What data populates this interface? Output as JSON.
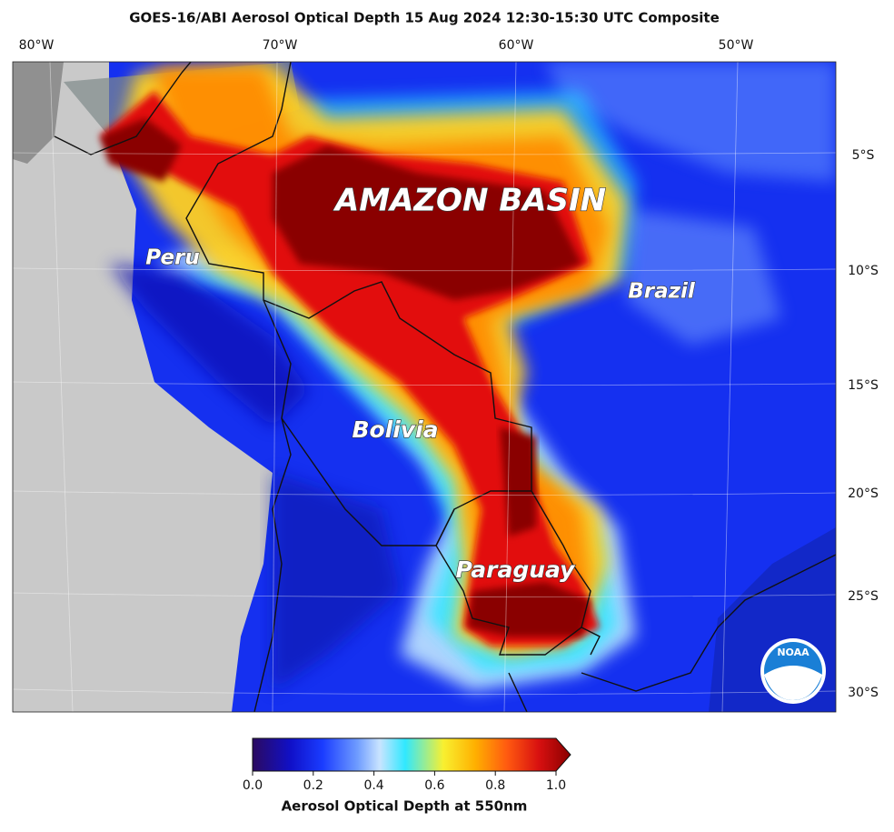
{
  "map": {
    "title": "GOES-16/ABI Aerosol Optical Depth  15 Aug 2024 12:30-15:30 UTC Composite",
    "longitude_labels": [
      "80°W",
      "70°W",
      "60°W",
      "50°W"
    ],
    "latitude_labels": [
      "5°S",
      "10°S",
      "15°S",
      "20°S",
      "25°S",
      "30°S"
    ],
    "places": [
      "AMAZON BASIN",
      "Peru",
      "Brazil",
      "Bolivia",
      "Paraguay"
    ],
    "logo": "NOAA"
  },
  "colorbar": {
    "label": "Aerosol Optical Depth at 550nm",
    "lim": [
      0,
      1
    ],
    "ticks": [
      {
        "value": 0,
        "label": "0.0"
      },
      {
        "value": 0.2,
        "label": "0.2"
      },
      {
        "value": 0.4,
        "label": "0.4"
      },
      {
        "value": 0.6,
        "label": "0.6"
      },
      {
        "value": 0.8,
        "label": "0.8"
      },
      {
        "value": 1,
        "label": "1.0"
      }
    ]
  }
}
